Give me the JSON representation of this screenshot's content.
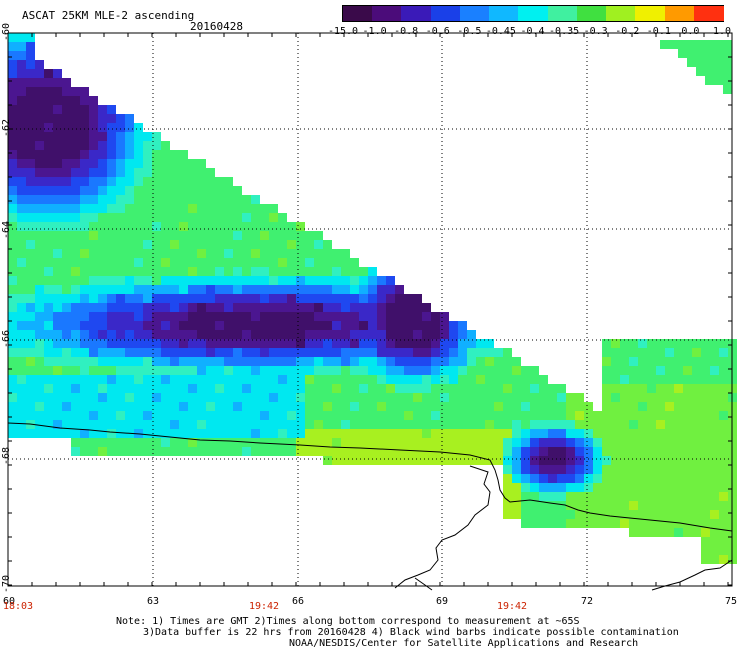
{
  "header": {
    "title": "ASCAT 25KM MLE-2 ascending",
    "date": "20160428"
  },
  "colorbar": {
    "labels": [
      "-15.0",
      "-1.0",
      "-0.8",
      "-0.6",
      "-0.5",
      "-0.45",
      "-0.4",
      "-0.35",
      "-0.3",
      "-0.2",
      "-0.1",
      "0.0",
      "1.0"
    ],
    "colors": [
      "#3a0a4a",
      "#4b0c7a",
      "#3a1ab8",
      "#1a40e8",
      "#1a80ff",
      "#10b8ff",
      "#00f0f0",
      "#40f0a0",
      "#40e040",
      "#a0f020",
      "#f0f000",
      "#ff9a00",
      "#ff3010"
    ]
  },
  "axes": {
    "lat_labels": [
      "-60",
      "-62",
      "-64",
      "-66",
      "-68",
      "-70"
    ],
    "lon_labels": [
      "60",
      "63",
      "66",
      "69",
      "72",
      "75"
    ],
    "time_labels": [
      "18:03",
      "19:42",
      "19:42"
    ]
  },
  "notes": {
    "line1": "Note: 1) Times are GMT 2)Times along bottom correspond to measurement at ~65S",
    "line2": "3)Data buffer is 22 hrs from 20160428 4) Black wind barbs indicate possible contamination",
    "line3": "NOAA/NESDIS/Center for Satellite Applications and Research"
  }
}
